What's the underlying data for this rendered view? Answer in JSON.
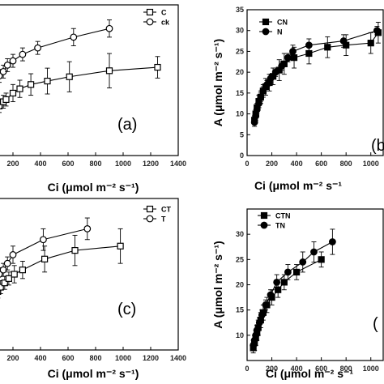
{
  "chart_data": [
    {
      "type": "line",
      "panel_label": "(a)",
      "xlabel": "Ci (μmol m⁻² s⁻¹)",
      "ylabel": "",
      "xlim": [
        0,
        1400
      ],
      "ylim": [
        0,
        35
      ],
      "xticks": [
        "200",
        "400",
        "600",
        "800",
        "1000",
        "1200",
        "1400"
      ],
      "xtick_values": [
        200,
        400,
        600,
        800,
        1000,
        1200,
        1400
      ],
      "yticks": [],
      "ytick_values": [],
      "legend_position": "top-right",
      "series": [
        {
          "name": "C",
          "marker": "square-open",
          "x": [
            40,
            60,
            80,
            100,
            130,
            150,
            200,
            250,
            330,
            450,
            610,
            900,
            1250
          ],
          "y": [
            8.0,
            9.5,
            10.5,
            11.5,
            12.5,
            13.0,
            14.5,
            15.5,
            16.5,
            17.3,
            18.3,
            19.7,
            20.5
          ],
          "err": [
            1.5,
            1.5,
            1.5,
            1.5,
            1.5,
            1.5,
            2.0,
            2.0,
            2.5,
            3.0,
            3.5,
            4.0,
            2.5
          ]
        },
        {
          "name": "ck",
          "marker": "circle-open",
          "x": [
            40,
            60,
            80,
            100,
            130,
            160,
            200,
            270,
            380,
            640,
            900
          ],
          "y": [
            14.0,
            16.0,
            17.5,
            18.5,
            19.5,
            21.0,
            22.0,
            23.5,
            25.0,
            27.5,
            29.5
          ],
          "err": [
            1.5,
            1.5,
            1.5,
            1.5,
            1.5,
            1.5,
            1.5,
            1.5,
            1.5,
            2.0,
            2.0
          ]
        }
      ]
    },
    {
      "type": "line",
      "panel_label": "(b",
      "xlabel": "Ci (μmol m⁻² s⁻¹",
      "ylabel": "A (μmol m⁻² s⁻¹)",
      "xlim": [
        0,
        1100
      ],
      "ylim": [
        0,
        35
      ],
      "xticks": [
        "0",
        "200",
        "400",
        "600",
        "800",
        "1000"
      ],
      "xtick_values": [
        0,
        200,
        400,
        600,
        800,
        1000
      ],
      "yticks": [
        "0",
        "5",
        "10",
        "15",
        "20",
        "25",
        "30",
        "35"
      ],
      "ytick_values": [
        0,
        5,
        10,
        15,
        20,
        25,
        30,
        35
      ],
      "legend_position": "top-left",
      "series": [
        {
          "name": "CN",
          "marker": "square-filled",
          "x": [
            60,
            70,
            80,
            95,
            110,
            130,
            150,
            180,
            210,
            260,
            300,
            380,
            500,
            650,
            800,
            1000,
            1060
          ],
          "y": [
            8.5,
            10.0,
            11.5,
            13.0,
            14.0,
            15.5,
            16.5,
            17.5,
            19.0,
            20.5,
            22.0,
            23.5,
            24.5,
            26.0,
            26.5,
            27.0,
            29.5
          ],
          "err": [
            1.0,
            1.0,
            1.0,
            1.5,
            1.5,
            1.5,
            2.0,
            2.0,
            2.0,
            2.5,
            2.5,
            2.5,
            2.5,
            2.5,
            2.5,
            2.5,
            2.5
          ]
        },
        {
          "name": "N",
          "marker": "circle-filled",
          "x": [
            60,
            70,
            80,
            95,
            110,
            130,
            160,
            190,
            230,
            280,
            330,
            370,
            500,
            780,
            1050
          ],
          "y": [
            8.0,
            9.5,
            11.0,
            12.5,
            14.0,
            15.5,
            17.0,
            18.5,
            20.0,
            21.5,
            23.5,
            25.0,
            26.5,
            27.5,
            30.0
          ],
          "err": [
            1.0,
            1.0,
            1.0,
            1.0,
            1.0,
            1.0,
            1.0,
            1.0,
            1.0,
            1.0,
            1.0,
            1.5,
            1.5,
            1.5,
            1.0
          ]
        }
      ]
    },
    {
      "type": "line",
      "panel_label": "(c)",
      "xlabel": "Ci (μmol m⁻² s⁻¹)",
      "ylabel": "",
      "xlim": [
        0,
        1400
      ],
      "ylim": [
        0,
        35
      ],
      "xticks": [
        "200",
        "400",
        "600",
        "800",
        "1000",
        "1200",
        "1400"
      ],
      "xtick_values": [
        200,
        400,
        600,
        800,
        1000,
        1200,
        1400
      ],
      "yticks": [],
      "ytick_values": [],
      "legend_position": "top-right",
      "series": [
        {
          "name": "CT",
          "marker": "square-open",
          "x": [
            30,
            50,
            70,
            90,
            110,
            140,
            170,
            210,
            270,
            430,
            650,
            980
          ],
          "y": [
            10.0,
            11.5,
            12.5,
            13.5,
            14.5,
            15.5,
            16.5,
            17.5,
            18.5,
            21.0,
            23.0,
            24.0
          ],
          "err": [
            1.5,
            1.5,
            1.5,
            1.5,
            1.5,
            1.5,
            1.5,
            2.0,
            2.0,
            3.0,
            3.5,
            4.0
          ]
        },
        {
          "name": "T",
          "marker": "circle-open",
          "x": [
            40,
            60,
            80,
            100,
            130,
            160,
            200,
            420,
            740
          ],
          "y": [
            13.0,
            14.5,
            16.0,
            17.5,
            18.5,
            20.0,
            22.0,
            25.5,
            28.0
          ],
          "err": [
            1.5,
            1.5,
            1.5,
            1.5,
            1.5,
            1.5,
            2.0,
            2.5,
            2.5
          ]
        }
      ]
    },
    {
      "type": "line",
      "panel_label": "(",
      "xlabel": "Ci (μmol m⁻² s⁻¹",
      "ylabel": "A (μmol m⁻² s⁻¹)",
      "xlim": [
        0,
        1100
      ],
      "ylim": [
        5,
        35
      ],
      "xticks": [
        "0",
        "200",
        "400",
        "600",
        "800",
        "1000"
      ],
      "xtick_values": [
        0,
        200,
        400,
        600,
        800,
        1000
      ],
      "yticks": [
        "10",
        "15",
        "20",
        "25",
        "30"
      ],
      "ytick_values": [
        10,
        15,
        20,
        25,
        30
      ],
      "legend_position": "top-left",
      "series": [
        {
          "name": "CTN",
          "marker": "square-filled",
          "x": [
            50,
            60,
            70,
            80,
            90,
            110,
            130,
            160,
            200,
            250,
            300,
            400,
            600
          ],
          "y": [
            7.5,
            8.5,
            9.5,
            10.5,
            11.5,
            13.0,
            14.5,
            16.0,
            17.5,
            19.0,
            20.5,
            22.5,
            25.0
          ],
          "err": [
            1.0,
            1.5,
            1.5,
            1.5,
            1.5,
            1.5,
            1.5,
            1.5,
            1.5,
            1.5,
            1.5,
            1.5,
            1.5
          ]
        },
        {
          "name": "TN",
          "marker": "circle-filled",
          "x": [
            50,
            60,
            70,
            80,
            100,
            120,
            150,
            190,
            240,
            330,
            450,
            540,
            690
          ],
          "y": [
            8.0,
            9.0,
            10.0,
            11.0,
            12.5,
            14.0,
            16.0,
            18.0,
            20.5,
            22.5,
            24.5,
            26.5,
            28.5
          ],
          "err": [
            1.0,
            1.0,
            1.0,
            1.0,
            1.0,
            1.0,
            1.0,
            1.0,
            1.5,
            1.5,
            2.0,
            2.0,
            2.5
          ]
        }
      ]
    }
  ]
}
